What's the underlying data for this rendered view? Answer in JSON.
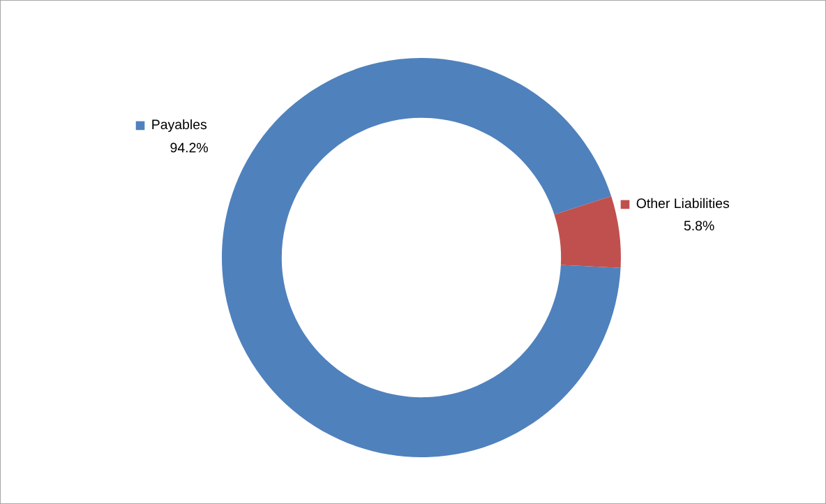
{
  "chart_data": {
    "type": "donut",
    "categories": [
      "Payables",
      "Other Liabilities"
    ],
    "values": [
      94.2,
      5.8
    ],
    "colors": [
      "#4f81bd",
      "#c0504d"
    ],
    "value_labels": [
      "94.2%",
      "5.8%"
    ],
    "legend": "right"
  }
}
